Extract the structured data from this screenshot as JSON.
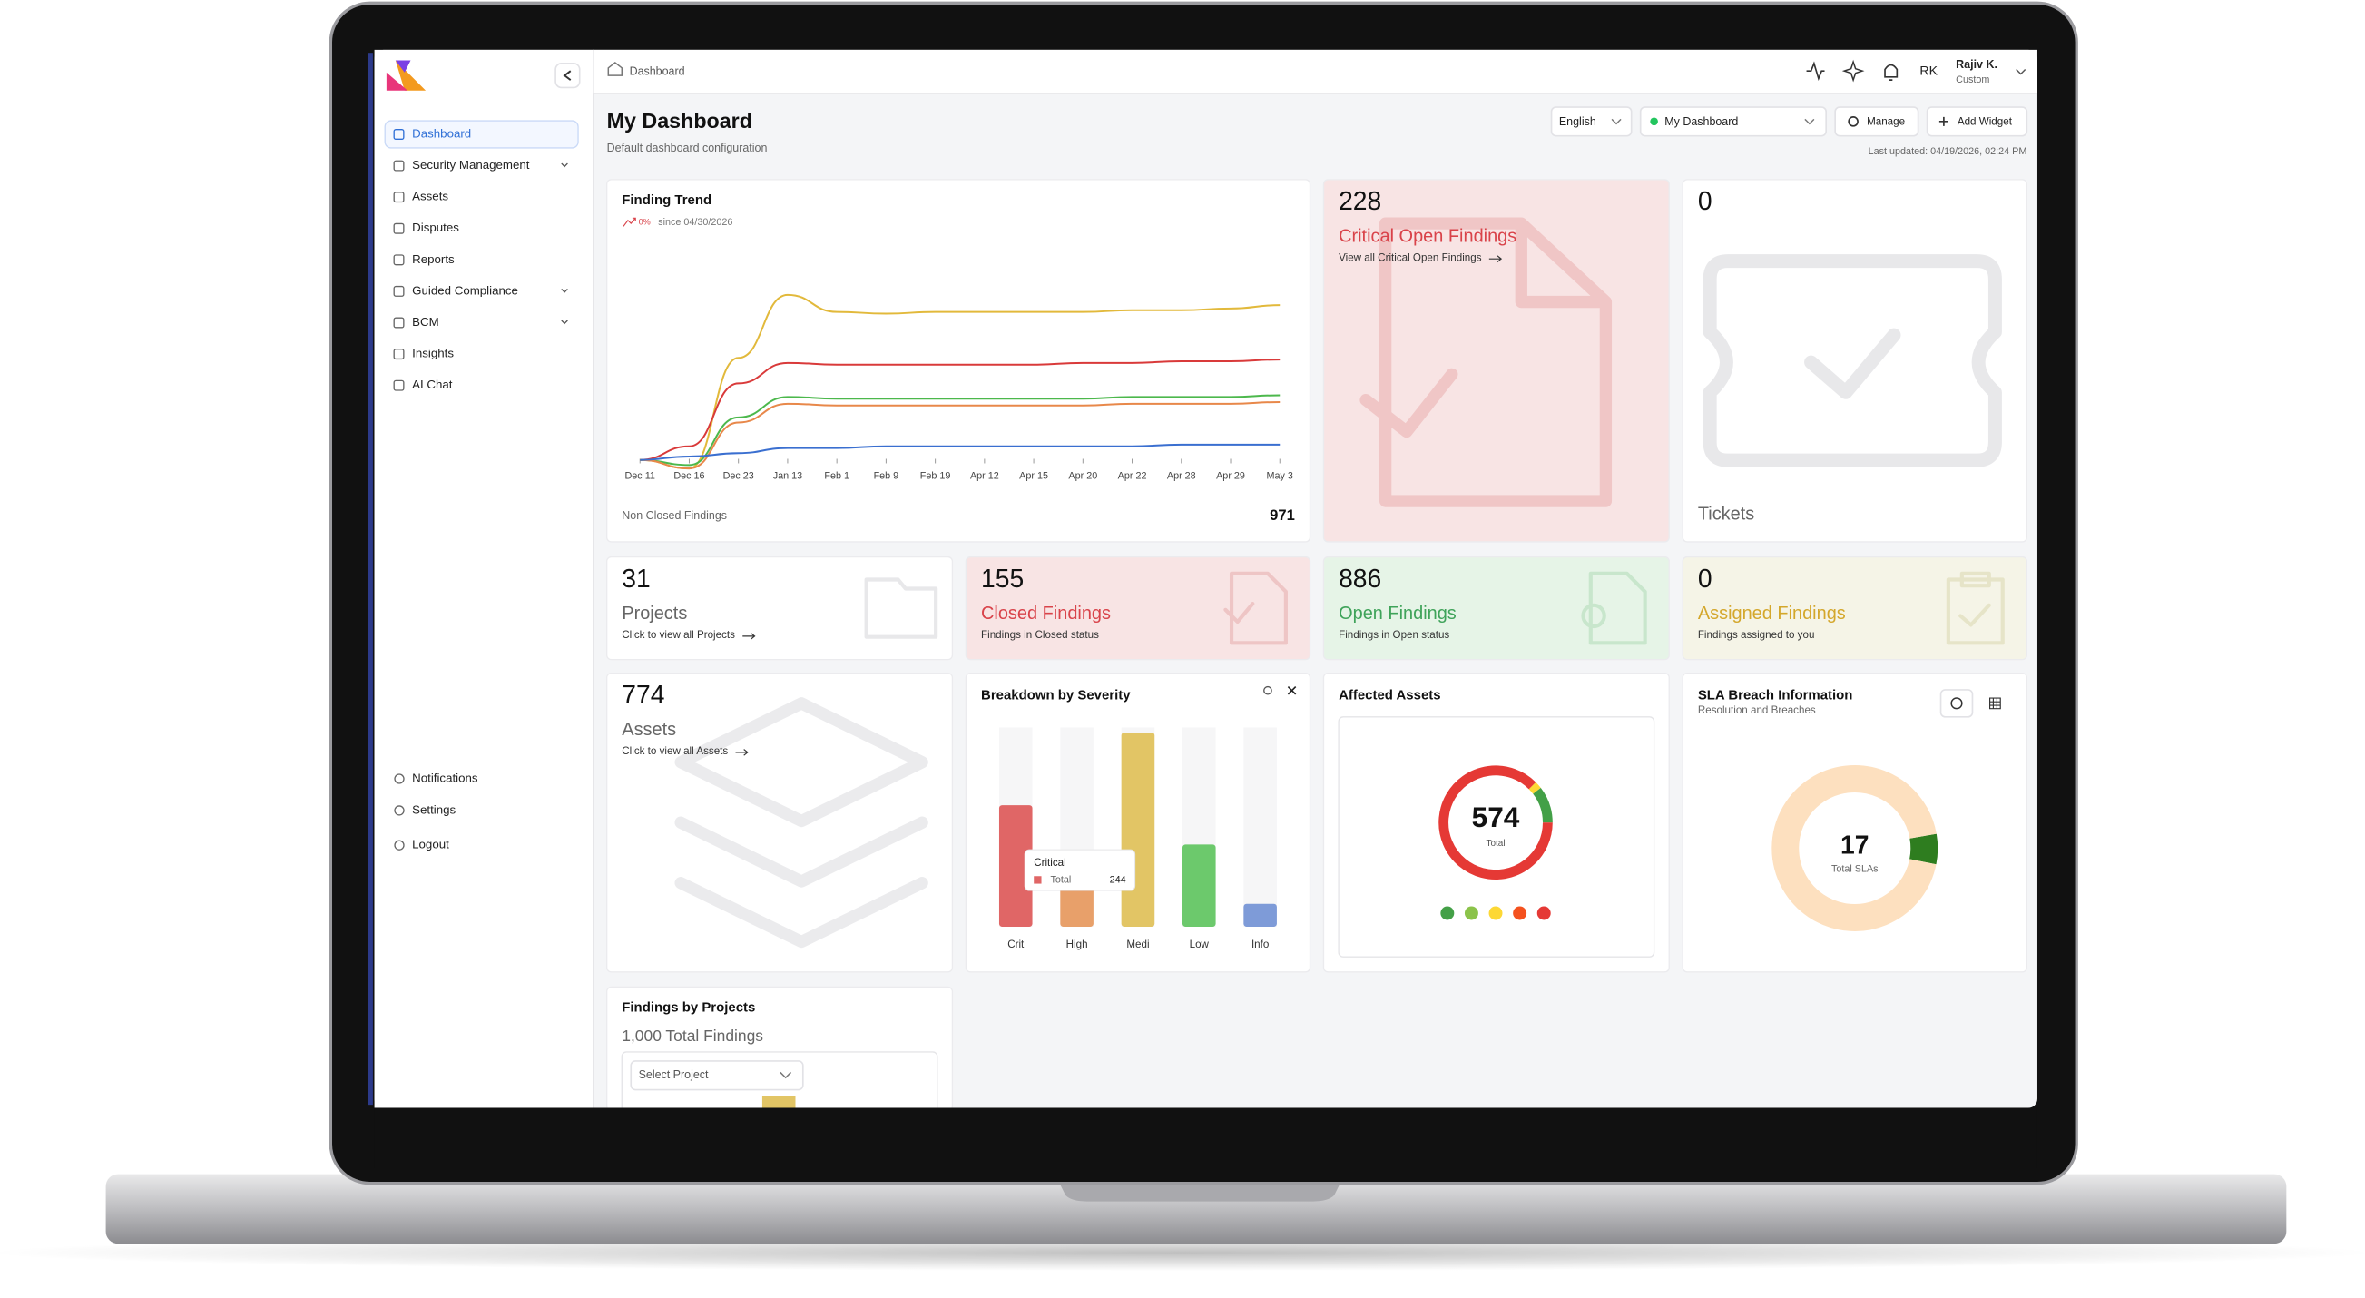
{
  "sidebar": {
    "nav": [
      "Dashboard",
      "Security Management",
      "Assets",
      "Disputes",
      "Reports",
      "Guided Compliance",
      "BCM",
      "Insights",
      "AI Chat"
    ],
    "bottom": [
      "Notifications",
      "Settings",
      "Logout"
    ]
  },
  "topbar": {
    "breadcrumb": "Dashboard",
    "initials": "RK",
    "user_name": "Rajiv K.",
    "user_role": "Custom"
  },
  "header": {
    "title": "My Dashboard",
    "subtitle": "Default dashboard configuration",
    "language": "English",
    "dashboard": "My Dashboard",
    "manage": "Manage",
    "add_widget": "Add Widget",
    "last_updated": "Last updated: 04/19/2026, 02:24 PM"
  },
  "cards": [
    {
      "value": 228,
      "title": "Critical Open Findings",
      "subtitle": "View all Critical Open Findings"
    },
    {
      "value": 0,
      "title": "Tickets"
    },
    {
      "value": 31,
      "title": "Projects",
      "subtitle": "Click to view all Projects"
    },
    {
      "value": 155,
      "title": "Closed Findings",
      "subtitle": "Findings in Closed status"
    },
    {
      "value": 886,
      "title": "Open Findings",
      "subtitle": "Findings in Open status"
    },
    {
      "value": 0,
      "title": "Assigned Findings",
      "subtitle": "Findings assigned to you"
    },
    {
      "value": 774,
      "title": "Assets",
      "subtitle": "Click to view all Assets"
    }
  ],
  "finding_trend": {
    "title": "Finding Trend",
    "change": "0%",
    "since": "since 04/30/2026",
    "footer_label": "Non Closed Findings",
    "footer_value": 971,
    "chart": {
      "type": "line",
      "x": [
        "Dec 11",
        "Dec 16",
        "Dec 23",
        "Jan 13",
        "Feb 1",
        "Feb 9",
        "Feb 19",
        "Apr 12",
        "Apr 15",
        "Apr 20",
        "Apr 22",
        "Apr 28",
        "Apr 29",
        "May 3"
      ],
      "ylim": [
        -10,
        100
      ],
      "series": [
        {
          "color": "#e2b93b",
          "values": [
            0,
            -5,
            60,
            97,
            87,
            86,
            87,
            87,
            87,
            87,
            88,
            88,
            89,
            91
          ]
        },
        {
          "color": "#d93a3a",
          "values": [
            0,
            8,
            45,
            57,
            56,
            56,
            56,
            56,
            56,
            57,
            57,
            58,
            58,
            59
          ]
        },
        {
          "color": "#4cb84c",
          "values": [
            0,
            -3,
            25,
            37,
            36,
            36,
            36,
            36,
            36,
            36,
            37,
            37,
            37,
            38
          ]
        },
        {
          "color": "#e8884a",
          "values": [
            0,
            -5,
            22,
            33,
            32,
            32,
            32,
            32,
            32,
            32,
            33,
            33,
            33,
            34
          ]
        },
        {
          "color": "#3a6fd0",
          "values": [
            0,
            2,
            4,
            7,
            7,
            8,
            8,
            8,
            8,
            8,
            8,
            9,
            9,
            9
          ]
        }
      ]
    }
  },
  "severity": {
    "title": "Breakdown by Severity",
    "chart": {
      "type": "bar",
      "categories": [
        "Crit",
        "High",
        "Medi",
        "Low",
        "Info"
      ],
      "values": [
        244,
        79,
        390,
        165,
        46
      ],
      "colors": [
        "#e06666",
        "#e8a06a",
        "#e2c565",
        "#6cc96c",
        "#7e9bd8"
      ],
      "ylim": [
        0,
        400
      ]
    },
    "tooltip": {
      "title": "Critical",
      "label": "Total"
    }
  },
  "affected_assets": {
    "title": "Affected Assets",
    "total": 574,
    "total_label": "Total",
    "chart": {
      "type": "donut",
      "series": [
        {
          "color": "#43a047",
          "value": 60
        },
        {
          "color": "#8bc34a",
          "value": 0
        },
        {
          "color": "#fdd835",
          "value": 12
        },
        {
          "color": "#f4511e",
          "value": 0
        },
        {
          "color": "#e53935",
          "value": 502
        }
      ]
    }
  },
  "sla": {
    "title": "SLA Breach Information",
    "subtitle": "Resolution and Breaches",
    "total": 17,
    "total_label": "Total SLAs",
    "chart": {
      "type": "donut",
      "series": [
        {
          "color": "#2e7d1f",
          "value": 1
        },
        {
          "color": "#fde0bf",
          "value": 16
        }
      ]
    }
  },
  "projects": {
    "title": "Findings by Projects",
    "total": "1,000 Total Findings",
    "select": "Select Project"
  }
}
